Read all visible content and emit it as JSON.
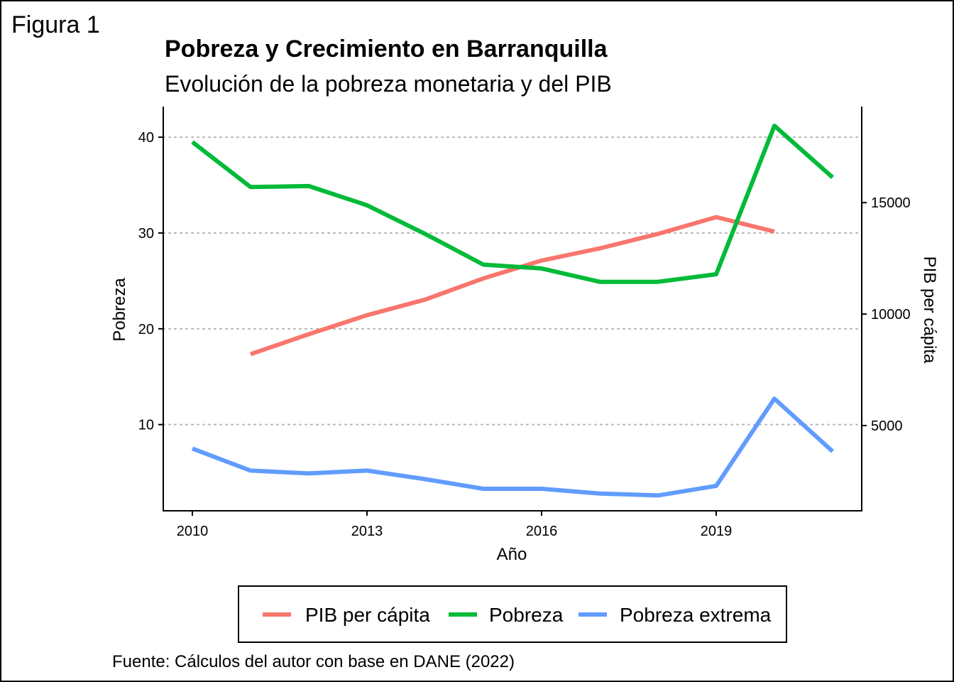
{
  "figure_label": "Figura 1",
  "title": "Pobreza y Crecimiento en Barranquilla",
  "subtitle": "Evolución de la pobreza monetaria y del PIB",
  "caption": "Fuente: Cálculos del autor con base en DANE (2022)",
  "chart_data": {
    "type": "line",
    "title": "Pobreza y Crecimiento en Barranquilla",
    "subtitle": "Evolución de la pobreza monetaria y del PIB",
    "xlabel": "Año",
    "ylabel": "Pobreza",
    "y2label": "PIB per cápita",
    "xlim": [
      2009.5,
      2021.5
    ],
    "ylim": [
      1.0,
      43.2
    ],
    "y2lim": [
      1176,
      19310
    ],
    "xticks": [
      2010,
      2013,
      2016,
      2019
    ],
    "yticks": [
      10,
      20,
      30,
      40
    ],
    "y2ticks": [
      5000,
      10000,
      15000
    ],
    "grid": "horizontal dotted",
    "legend_position": "bottom",
    "series": [
      {
        "name": "PIB per cápita",
        "axis": "right",
        "color": "#F8766D",
        "x": [
          2011,
          2012,
          2013,
          2014,
          2015,
          2016,
          2017,
          2018,
          2019,
          2020
        ],
        "values": [
          8200,
          9100,
          9950,
          10650,
          11600,
          12400,
          12950,
          13600,
          14350,
          13700
        ]
      },
      {
        "name": "Pobreza",
        "axis": "left",
        "color": "#00BA38",
        "x": [
          2010,
          2011,
          2012,
          2013,
          2014,
          2015,
          2016,
          2017,
          2018,
          2019,
          2020,
          2021
        ],
        "values": [
          39.5,
          34.8,
          34.9,
          32.9,
          29.9,
          26.7,
          26.3,
          24.9,
          24.9,
          25.7,
          41.2,
          35.8
        ]
      },
      {
        "name": "Pobreza extrema",
        "axis": "left",
        "color": "#619CFF",
        "x": [
          2010,
          2011,
          2012,
          2013,
          2014,
          2015,
          2016,
          2017,
          2018,
          2019,
          2020,
          2021
        ],
        "values": [
          7.5,
          5.2,
          4.9,
          5.2,
          4.3,
          3.3,
          3.3,
          2.8,
          2.6,
          3.6,
          12.7,
          7.2
        ]
      }
    ]
  }
}
